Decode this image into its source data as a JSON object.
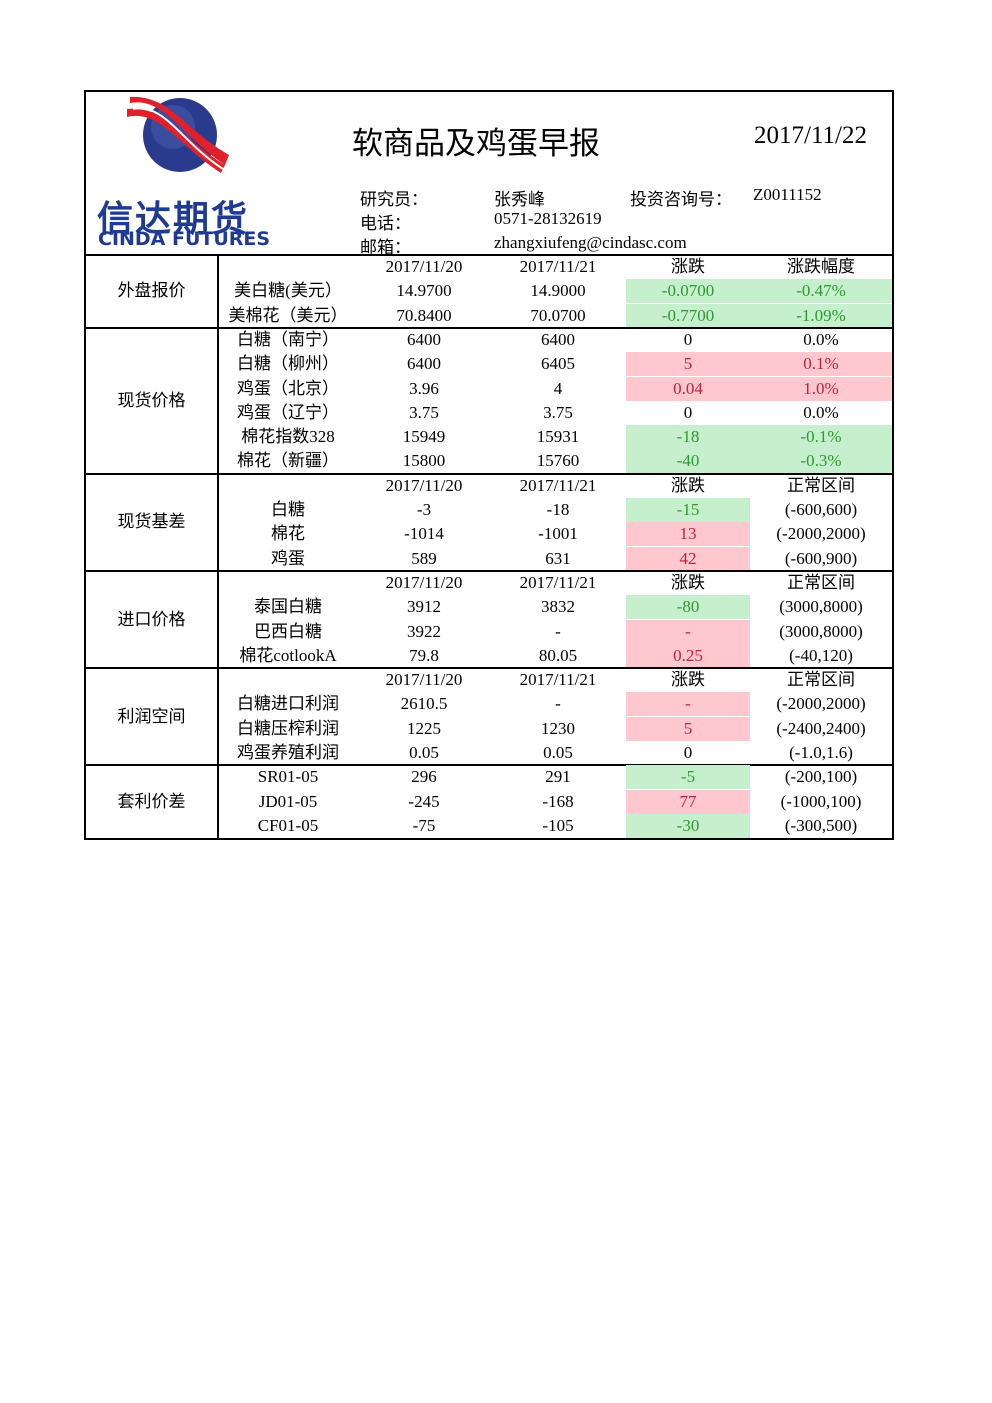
{
  "logo": {
    "name": "信达期货",
    "name_en": "CINDA FUTURES"
  },
  "header": {
    "title": "软商品及鸡蛋早报",
    "date": "2017/11/22",
    "researcher_label": "研究员：",
    "researcher": "张秀峰",
    "license_label": "投资咨询号：",
    "license": "Z0011152",
    "phone_label": "电话：",
    "phone": "0571-28132619",
    "email_label": "邮箱：",
    "email": "zhangxiufeng@cindasc.com"
  },
  "sections": [
    {
      "name": "外盘报价",
      "rows": [
        {
          "header": [
            "2017/11/20",
            "2017/11/21",
            "涨跌",
            "涨跌幅度"
          ]
        },
        {
          "cells": [
            "美白糖(美元）",
            "14.9700",
            "14.9000",
            "-0.0700",
            "-0.47%"
          ],
          "fill": [
            "#c6efce",
            "#c6efce"
          ]
        },
        {
          "cells": [
            "美棉花（美元）",
            "70.8400",
            "70.0700",
            "-0.7700",
            "-1.09%"
          ],
          "fill": [
            "#c6efce",
            "#c6efce"
          ]
        }
      ]
    },
    {
      "name": "现货价格",
      "rows": [
        {
          "cells": [
            "白糖（南宁）",
            "6400",
            "6400",
            "0",
            "0.0%"
          ],
          "fill": [
            null,
            null
          ]
        },
        {
          "cells": [
            "白糖（柳州）",
            "6400",
            "6405",
            "5",
            "0.1%"
          ],
          "fill": [
            "#ffc7ce",
            "#ffc7ce"
          ]
        },
        {
          "cells": [
            "鸡蛋（北京）",
            "3.96",
            "4",
            "0.04",
            "1.0%"
          ],
          "fill": [
            "#ffc7ce",
            "#ffc7ce"
          ]
        },
        {
          "cells": [
            "鸡蛋（辽宁）",
            "3.75",
            "3.75",
            "0",
            "0.0%"
          ],
          "fill": [
            null,
            null
          ]
        },
        {
          "cells": [
            "棉花指数328",
            "15949",
            "15931",
            "-18",
            "-0.1%"
          ],
          "fill": [
            "#c6efce",
            "#c6efce"
          ]
        },
        {
          "cells": [
            "棉花（新疆）",
            "15800",
            "15760",
            "-40",
            "-0.3%"
          ],
          "fill": [
            "#c6efce",
            "#c6efce"
          ]
        }
      ]
    },
    {
      "name": "现货基差",
      "rows": [
        {
          "header": [
            "2017/11/20",
            "2017/11/21",
            "涨跌",
            "正常区间"
          ]
        },
        {
          "cells": [
            "白糖",
            "-3",
            "-18",
            "-15",
            "(-600,600)"
          ],
          "fill": [
            "#c6efce",
            null
          ]
        },
        {
          "cells": [
            "棉花",
            "-1014",
            "-1001",
            "13",
            "(-2000,2000)"
          ],
          "fill": [
            "#ffc7ce",
            null
          ]
        },
        {
          "cells": [
            "鸡蛋",
            "589",
            "631",
            "42",
            "(-600,900)"
          ],
          "fill": [
            "#ffc7ce",
            null
          ]
        }
      ]
    },
    {
      "name": "进口价格",
      "rows": [
        {
          "header": [
            "2017/11/20",
            "2017/11/21",
            "涨跌",
            "正常区间"
          ]
        },
        {
          "cells": [
            "泰国白糖",
            "3912",
            "3832",
            "-80",
            "(3000,8000)"
          ],
          "fill": [
            "#c6efce",
            null
          ]
        },
        {
          "cells": [
            "巴西白糖",
            "3922",
            "-",
            "-",
            "(3000,8000)"
          ],
          "fill": [
            "#ffc7ce",
            null
          ]
        },
        {
          "cells": [
            "棉花cotlookA",
            "79.8",
            "80.05",
            "0.25",
            "(-40,120)"
          ],
          "fill": [
            "#ffc7ce",
            null
          ]
        }
      ]
    },
    {
      "name": "利润空间",
      "rows": [
        {
          "header": [
            "2017/11/20",
            "2017/11/21",
            "涨跌",
            "正常区间"
          ]
        },
        {
          "cells": [
            "白糖进口利润",
            "2610.5",
            "-",
            "-",
            "(-2000,2000)"
          ],
          "fill": [
            "#ffc7ce",
            null
          ]
        },
        {
          "cells": [
            "白糖压榨利润",
            "1225",
            "1230",
            "5",
            "(-2400,2400)"
          ],
          "fill": [
            "#ffc7ce",
            null
          ]
        },
        {
          "cells": [
            "鸡蛋养殖利润",
            "0.05",
            "0.05",
            "0",
            "(-1.0,1.6)"
          ],
          "fill": [
            null,
            null
          ]
        }
      ]
    },
    {
      "name": "套利价差",
      "rows": [
        {
          "cells": [
            "SR01-05",
            "296",
            "291",
            "-5",
            "(-200,100)"
          ],
          "fill": [
            "#c6efce",
            null
          ]
        },
        {
          "cells": [
            "JD01-05",
            "-245",
            "-168",
            "77",
            "(-1000,100)"
          ],
          "fill": [
            "#ffc7ce",
            null
          ]
        },
        {
          "cells": [
            "CF01-05",
            "-75",
            "-105",
            "-30",
            "(-300,500)"
          ],
          "fill": [
            "#c6efce",
            null
          ]
        }
      ]
    }
  ]
}
